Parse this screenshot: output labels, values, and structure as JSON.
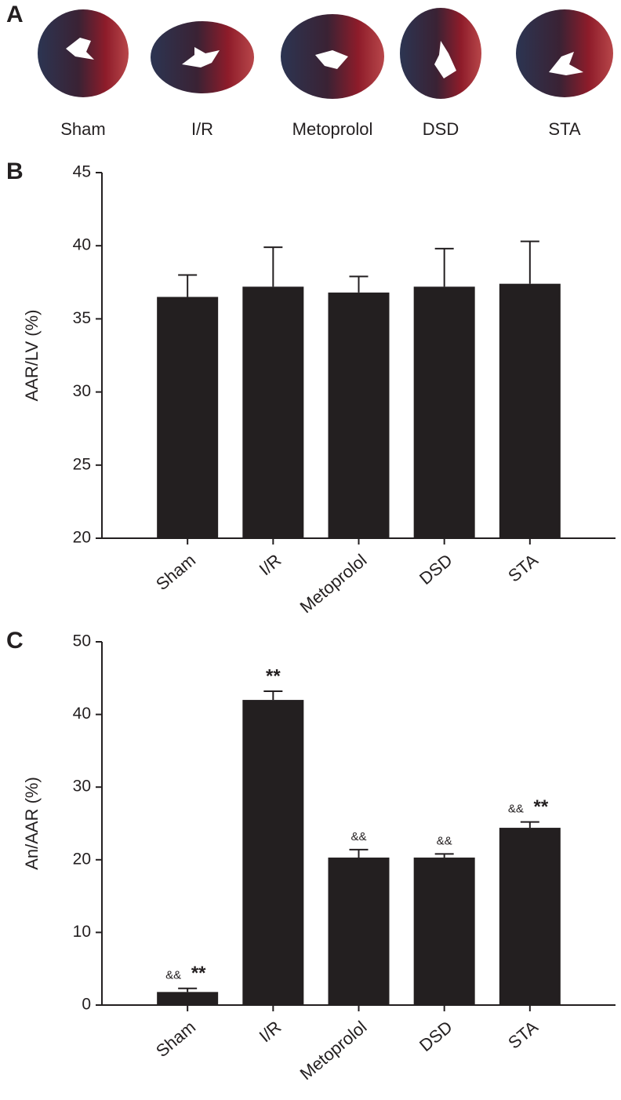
{
  "panel_a": {
    "label": "A",
    "images": [
      "Sham",
      "I/R",
      "Metoprolol",
      "DSD",
      "STA"
    ]
  },
  "chart_data": [
    {
      "type": "bar",
      "panel_label": "B",
      "y_label": "AAR/LV (%)",
      "categories": [
        "Sham",
        "I/R",
        "Metoprolol",
        "DSD",
        "STA"
      ],
      "values": [
        36.5,
        37.2,
        36.8,
        37.2,
        37.4
      ],
      "errors": [
        1.5,
        2.7,
        1.1,
        2.6,
        2.9
      ],
      "color": "#231f20",
      "ylim": [
        20,
        45
      ],
      "yticks": [
        20,
        25,
        30,
        35,
        40,
        45
      ]
    },
    {
      "type": "bar",
      "panel_label": "C",
      "y_label": "An/AAR (%)",
      "categories": [
        "Sham",
        "I/R",
        "Metoprolol",
        "DSD",
        "STA"
      ],
      "values": [
        1.8,
        42,
        20.3,
        20.3,
        24.4
      ],
      "errors": [
        0.5,
        1.2,
        1.1,
        0.5,
        0.8
      ],
      "annotations": [
        [
          "&&",
          "**"
        ],
        [
          "**"
        ],
        [
          "&&"
        ],
        [
          "&&"
        ],
        [
          "&&",
          "**"
        ]
      ],
      "color": "#231f20",
      "ylim": [
        0,
        50
      ],
      "yticks": [
        0,
        10,
        20,
        30,
        40,
        50
      ]
    }
  ]
}
